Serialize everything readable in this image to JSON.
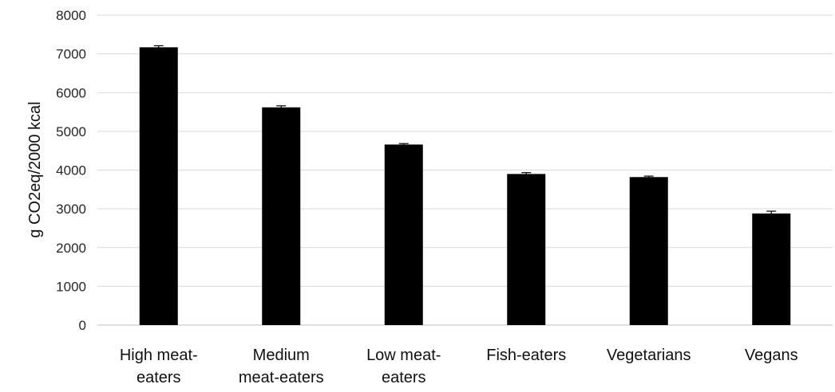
{
  "chart_data": {
    "type": "bar",
    "categories": [
      [
        "High meat-",
        "eaters"
      ],
      [
        "Medium",
        "meat-eaters"
      ],
      [
        "Low meat-",
        "eaters"
      ],
      [
        "Fish-eaters"
      ],
      [
        "Vegetarians"
      ],
      [
        "Vegans"
      ]
    ],
    "values": [
      7170,
      5620,
      4660,
      3900,
      3820,
      2880
    ],
    "errors": [
      40,
      40,
      25,
      35,
      25,
      60
    ],
    "ylabel": "g CO2eq/2000 kcal",
    "ylim": [
      0,
      8000
    ],
    "yticks": [
      0,
      1000,
      2000,
      3000,
      4000,
      5000,
      6000,
      7000,
      8000
    ],
    "grid": true,
    "legend": "none",
    "colors": {
      "bar": "#000000",
      "grid": "#d9d9d9"
    }
  }
}
